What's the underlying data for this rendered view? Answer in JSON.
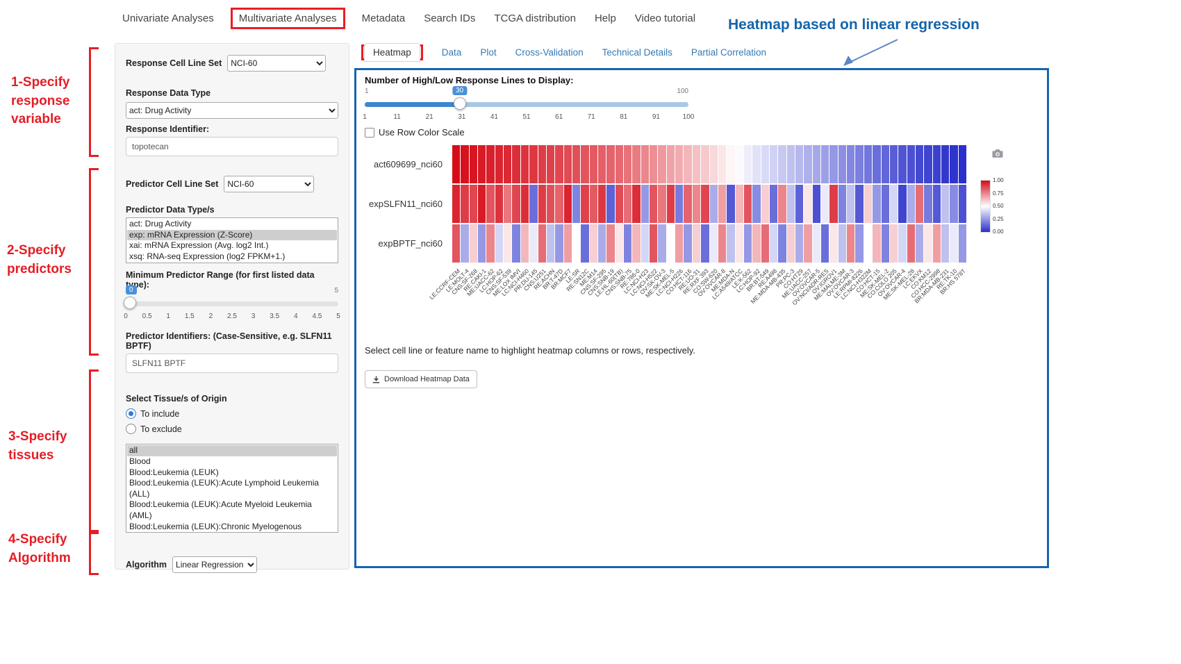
{
  "nav": {
    "items": [
      {
        "label": "Univariate Analyses",
        "highlighted": false
      },
      {
        "label": "Multivariate Analyses",
        "highlighted": true
      },
      {
        "label": "Metadata",
        "highlighted": false
      },
      {
        "label": "Search IDs",
        "highlighted": false
      },
      {
        "label": "TCGA distribution",
        "highlighted": false
      },
      {
        "label": "Help",
        "highlighted": false
      },
      {
        "label": "Video tutorial",
        "highlighted": false
      }
    ]
  },
  "annotations": {
    "title": "Heatmap based on linear regression",
    "steps": [
      {
        "label": "1-Specify response variable"
      },
      {
        "label": "2-Specify predictors"
      },
      {
        "label": "3-Specify tissues"
      },
      {
        "label": "4-Specify Algorithm"
      }
    ],
    "red": "#e51d25",
    "blue": "#1464ab"
  },
  "sidebar": {
    "response_cell_line_set": {
      "label": "Response Cell Line Set",
      "value": "NCI-60"
    },
    "response_data_type": {
      "label": "Response Data Type",
      "value": "act: Drug Activity"
    },
    "response_identifier": {
      "label": "Response Identifier:",
      "value": "topotecan"
    },
    "predictor_cell_line_set": {
      "label": "Predictor Cell Line Set",
      "value": "NCI-60"
    },
    "predictor_data_types": {
      "label": "Predictor Data Type/s",
      "options": [
        "act: Drug Activity",
        "exp: mRNA Expression (Z-Score)",
        "xai: mRNA Expression (Avg. log2 Int.)",
        "xsq: RNA-seq Expression (log2 FPKM+1.)"
      ],
      "selected": "exp: mRNA Expression (Z-Score)"
    },
    "min_predictor_range": {
      "label": "Minimum Predictor Range (for first listed data type):",
      "value": "0",
      "max_label": "5",
      "ticks": [
        "0",
        "0.5",
        "1",
        "1.5",
        "2",
        "2.5",
        "3",
        "3.5",
        "4",
        "4.5",
        "5"
      ]
    },
    "predictor_identifiers": {
      "label": "Predictor Identifiers: (Case-Sensitive, e.g. SLFN11 BPTF)",
      "value": "SLFN11 BPTF"
    },
    "tissue_origin": {
      "label": "Select Tissue/s of Origin",
      "radios": [
        {
          "label": "To include",
          "selected": true
        },
        {
          "label": "To exclude",
          "selected": false
        }
      ],
      "options": [
        "all",
        "Blood",
        "Blood:Leukemia (LEUK)",
        "Blood:Leukemia (LEUK):Acute Lymphoid Leukemia (ALL)",
        "Blood:Leukemia (LEUK):Acute Myeloid Leukemia (AML)",
        "Blood:Leukemia (LEUK):Chronic Myelogenous Leukemia (CML)"
      ],
      "selected": "all"
    },
    "algorithm": {
      "label": "Algorithm",
      "value": "Linear Regression"
    }
  },
  "tabs": {
    "items": [
      "Heatmap",
      "Data",
      "Plot",
      "Cross-Validation",
      "Technical Details",
      "Partial Correlation"
    ],
    "active": "Heatmap"
  },
  "main": {
    "lines_slider": {
      "label": "Number of High/Low Response Lines to Display:",
      "value": "30",
      "min": 1,
      "max": 100,
      "min_label": "1",
      "max_label": "100",
      "ticks": [
        "1",
        "11",
        "21",
        "31",
        "41",
        "51",
        "61",
        "71",
        "81",
        "91",
        "100"
      ]
    },
    "row_color_scale": {
      "label": "Use Row Color Scale",
      "checked": false
    },
    "note": "Select cell line or feature name to highlight heatmap columns or rows, respectively.",
    "download_button": "Download Heatmap Data"
  },
  "chart_data": {
    "type": "heatmap",
    "rows": [
      "act609699_nci60",
      "expSLFN11_nci60",
      "expBPTF_nci60"
    ],
    "columns": [
      "LE:CCRF-CEM",
      "LE:MOLT-4",
      "CNS:SF-268",
      "RE:CAKI-1",
      "ME:UACC-62",
      "LC:HOP-62",
      "CNS:SF-539",
      "ME:LOX IMVI",
      "LC:NCI-H460",
      "PR:DU-145",
      "CNS:U251",
      "RE:ACHN",
      "BR:T-47D",
      "BR:MCF7",
      "LE:SR",
      "RE:SN12C",
      "ME:M14",
      "CNS:SF-295",
      "CNS:SNB-19",
      "LE:HL-60(TB)",
      "CNS:SNB-75",
      "RE:786-0",
      "LC:NCI-H23",
      "LC:NCI-H522",
      "OV:SK-OV-3",
      "ME:SK-MEL-5",
      "LC:NCI-H226",
      "CO:HCT-116",
      "RE:UO-31",
      "RE:RXF 393",
      "CO:SW-620",
      "OV:OVCAR-8",
      "ME:MDA-N",
      "LC:A549/ATCC",
      "LE:K-562",
      "LC:HOP-92",
      "BR:BT-549",
      "RE:A498",
      "ME:MDA-MB-435",
      "PR:PC-3",
      "CO:HT29",
      "ME:UACC-257",
      "OV:OVCAR-5",
      "OV:NCI/ADR-RES",
      "OV:IGROV1",
      "ME:MALME-3M",
      "OV:OVCAR-3",
      "LE:RPMI-8226",
      "LC:NCI-H322M",
      "CO:HCT-15",
      "ME:SK-MEL-2",
      "CO:COLO 205",
      "OV:OVCAR-4",
      "ME:SK-MEL-28",
      "LC:EKVX",
      "CO:KM12",
      "CO:HCC-2998",
      "BR:MDA-MB-231",
      "RE:TK-10",
      "BR:HS 578T"
    ],
    "values": [
      [
        1.0,
        0.99,
        0.98,
        0.97,
        0.96,
        0.95,
        0.94,
        0.93,
        0.92,
        0.91,
        0.9,
        0.89,
        0.88,
        0.87,
        0.86,
        0.85,
        0.84,
        0.83,
        0.82,
        0.81,
        0.79,
        0.77,
        0.75,
        0.73,
        0.71,
        0.69,
        0.67,
        0.65,
        0.63,
        0.61,
        0.58,
        0.55,
        0.52,
        0.49,
        0.46,
        0.43,
        0.41,
        0.39,
        0.37,
        0.35,
        0.33,
        0.31,
        0.29,
        0.27,
        0.25,
        0.23,
        0.21,
        0.19,
        0.17,
        0.15,
        0.13,
        0.11,
        0.09,
        0.08,
        0.06,
        0.05,
        0.04,
        0.02,
        0.01,
        0.0
      ],
      [
        0.95,
        0.9,
        0.88,
        0.97,
        0.85,
        0.92,
        0.78,
        0.88,
        0.93,
        0.15,
        0.9,
        0.86,
        0.82,
        0.95,
        0.2,
        0.89,
        0.84,
        0.91,
        0.12,
        0.87,
        0.8,
        0.93,
        0.25,
        0.85,
        0.78,
        0.9,
        0.18,
        0.82,
        0.75,
        0.88,
        0.3,
        0.7,
        0.1,
        0.65,
        0.85,
        0.22,
        0.6,
        0.15,
        0.75,
        0.35,
        0.12,
        0.55,
        0.08,
        0.45,
        0.9,
        0.2,
        0.35,
        0.1,
        0.6,
        0.25,
        0.15,
        0.4,
        0.05,
        0.3,
        0.8,
        0.18,
        0.1,
        0.35,
        0.22,
        0.08
      ],
      [
        0.85,
        0.3,
        0.6,
        0.25,
        0.75,
        0.4,
        0.55,
        0.2,
        0.65,
        0.45,
        0.8,
        0.35,
        0.25,
        0.7,
        0.5,
        0.15,
        0.6,
        0.3,
        0.75,
        0.55,
        0.2,
        0.65,
        0.4,
        0.85,
        0.3,
        0.5,
        0.7,
        0.25,
        0.6,
        0.15,
        0.45,
        0.75,
        0.35,
        0.55,
        0.25,
        0.65,
        0.8,
        0.4,
        0.2,
        0.6,
        0.3,
        0.7,
        0.45,
        0.15,
        0.55,
        0.35,
        0.75,
        0.25,
        0.5,
        0.65,
        0.2,
        0.6,
        0.4,
        0.8,
        0.3,
        0.55,
        0.7,
        0.35,
        0.45,
        0.25
      ]
    ],
    "colorscale": {
      "high": "#d60c19",
      "mid": "#ffffff",
      "low": "#2a30cb",
      "ticks": [
        "1.00",
        "0.75",
        "0.50",
        "0.25",
        "0.00"
      ]
    },
    "legend_position": "right",
    "xlabel": "",
    "ylabel": ""
  }
}
